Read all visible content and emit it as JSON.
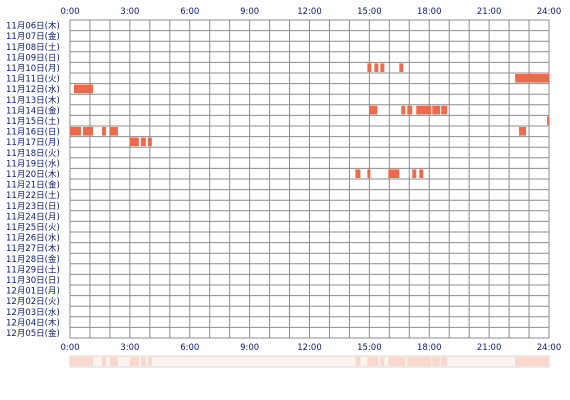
{
  "chart_data": {
    "type": "heatmap",
    "x_unit": "hour",
    "xlim": [
      0,
      24
    ],
    "x_tick_labels": [
      "0:00",
      "3:00",
      "6:00",
      "9:00",
      "12:00",
      "15:00",
      "18:00",
      "21:00",
      "24:00"
    ],
    "rows": [
      "11月06日(木)",
      "11月07日(金)",
      "11月08日(土)",
      "11月09日(日)",
      "11月10日(月)",
      "11月11日(火)",
      "11月12日(水)",
      "11月13日(木)",
      "11月14日(金)",
      "11月15日(土)",
      "11月16日(日)",
      "11月17日(月)",
      "11月18日(火)",
      "11月19日(水)",
      "11月20日(木)",
      "11月21日(金)",
      "11月22日(土)",
      "11月23日(日)",
      "11月24日(月)",
      "11月25日(火)",
      "11月26日(水)",
      "11月27日(木)",
      "11月28日(金)",
      "11月29日(土)",
      "11月30日(日)",
      "12月01日(月)",
      "12月02日(火)",
      "12月03日(水)",
      "12月04日(木)",
      "12月05日(金)"
    ],
    "events": [
      {
        "row": 4,
        "start": 14.9,
        "end": 15.1
      },
      {
        "row": 4,
        "start": 15.25,
        "end": 15.45
      },
      {
        "row": 4,
        "start": 15.55,
        "end": 15.75
      },
      {
        "row": 4,
        "start": 16.5,
        "end": 16.7
      },
      {
        "row": 5,
        "start": 22.3,
        "end": 24.0
      },
      {
        "row": 6,
        "start": 0.2,
        "end": 1.15
      },
      {
        "row": 8,
        "start": 15.0,
        "end": 15.4
      },
      {
        "row": 8,
        "start": 16.6,
        "end": 16.8
      },
      {
        "row": 8,
        "start": 16.9,
        "end": 17.15
      },
      {
        "row": 8,
        "start": 17.35,
        "end": 18.1
      },
      {
        "row": 8,
        "start": 18.15,
        "end": 18.55
      },
      {
        "row": 8,
        "start": 18.6,
        "end": 18.9
      },
      {
        "row": 9,
        "start": 23.9,
        "end": 24.0
      },
      {
        "row": 10,
        "start": 0.0,
        "end": 0.55
      },
      {
        "row": 10,
        "start": 0.65,
        "end": 1.15
      },
      {
        "row": 10,
        "start": 1.6,
        "end": 1.8
      },
      {
        "row": 10,
        "start": 2.0,
        "end": 2.4
      },
      {
        "row": 10,
        "start": 22.5,
        "end": 22.85
      },
      {
        "row": 11,
        "start": 3.0,
        "end": 3.45
      },
      {
        "row": 11,
        "start": 3.55,
        "end": 3.8
      },
      {
        "row": 11,
        "start": 3.9,
        "end": 4.1
      },
      {
        "row": 14,
        "start": 14.3,
        "end": 14.55
      },
      {
        "row": 14,
        "start": 14.9,
        "end": 15.05
      },
      {
        "row": 14,
        "start": 15.95,
        "end": 16.5
      },
      {
        "row": 14,
        "start": 17.15,
        "end": 17.35
      },
      {
        "row": 14,
        "start": 17.5,
        "end": 17.7
      }
    ],
    "colors": {
      "event": "#ef6a4a",
      "grid": "#8c8c8c",
      "summary_fill": "#fbd8cb",
      "summary_border": "#d9d9d9",
      "label": "#0b1a6e"
    }
  }
}
